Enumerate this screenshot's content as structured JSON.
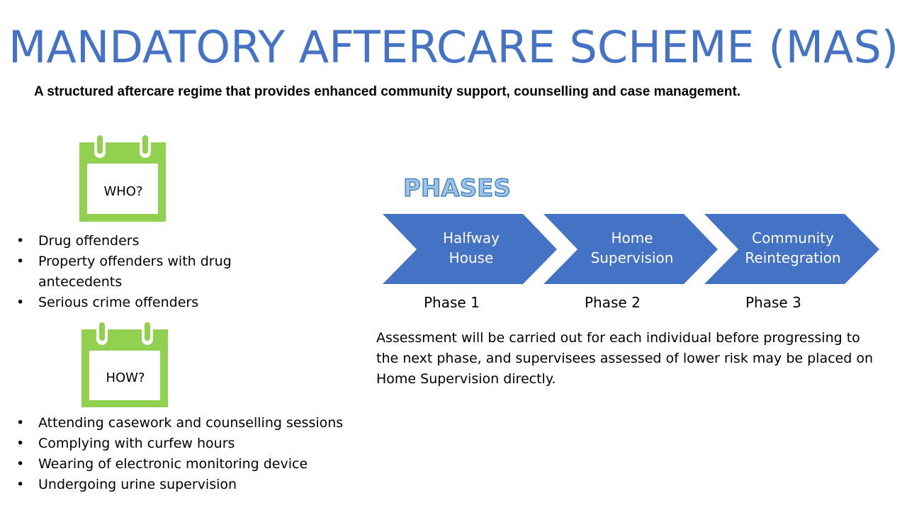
{
  "title": "MANDATORY AFTERCARE SCHEME (MAS)",
  "subtitle": "A structured aftercare regime that provides enhanced community support, counselling and case management.",
  "who": {
    "label": "WHO?",
    "items": [
      "Drug offenders",
      "Property offenders with drug",
      "antecedents",
      "Serious crime offenders"
    ]
  },
  "how": {
    "label": "HOW?",
    "items": [
      "Attending casework and counselling sessions",
      "Complying with curfew hours",
      "Wearing of electronic monitoring device",
      "Undergoing urine supervision"
    ]
  },
  "phases": {
    "heading": "PHASES",
    "steps": [
      {
        "line1": "Halfway",
        "line2": "House",
        "label": "Phase 1"
      },
      {
        "line1": "Home",
        "line2": "Supervision",
        "label": "Phase 2"
      },
      {
        "line1": "Community",
        "line2": "Reintegration",
        "label": "Phase 3"
      }
    ]
  },
  "assessment": {
    "line1": "Assessment will be carried out for each individual before progressing to",
    "line2": "the next phase, and supervisees assessed of lower risk may be placed on",
    "line3": "Home Supervision directly."
  },
  "colors": {
    "title": "#4472c4",
    "chevron": "#4472c4",
    "calendar": "#92d050",
    "phases_heading": "#9dc3e6"
  },
  "icons": [
    "calendar-icon",
    "chevron-arrow"
  ]
}
